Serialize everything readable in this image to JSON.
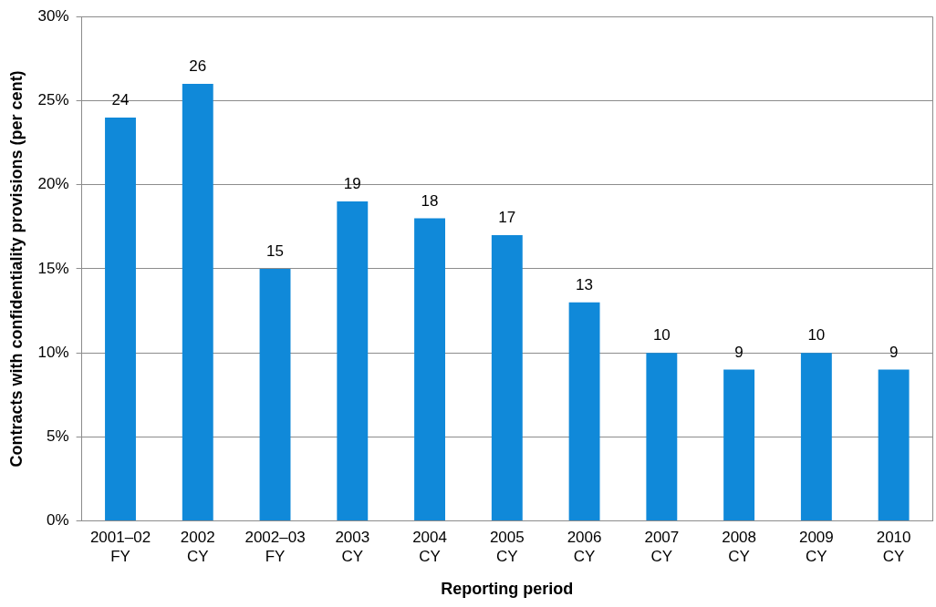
{
  "chart_data": {
    "type": "bar",
    "xlabel": "Reporting period",
    "ylabel": "Contracts with confidentiality provisions (per cent)",
    "categories": [
      "2001–02 FY",
      "2002 CY",
      "2002–03 FY",
      "2003 CY",
      "2004 CY",
      "2005 CY",
      "2006 CY",
      "2007 CY",
      "2008 CY",
      "2009 CY",
      "2010 CY"
    ],
    "values": [
      24,
      26,
      15,
      19,
      18,
      17,
      13,
      10,
      9,
      10,
      9
    ],
    "color": "#1089d9",
    "ylim": [
      0,
      30
    ],
    "yticks": [
      {
        "value": 0,
        "label": "0%"
      },
      {
        "value": 5,
        "label": "5%"
      },
      {
        "value": 10,
        "label": "10%"
      },
      {
        "value": 15,
        "label": "15%"
      },
      {
        "value": 20,
        "label": "20%"
      },
      {
        "value": 25,
        "label": "25%"
      },
      {
        "value": 30,
        "label": "30%"
      }
    ],
    "grid": "y",
    "legend": false,
    "data_labels": true
  }
}
